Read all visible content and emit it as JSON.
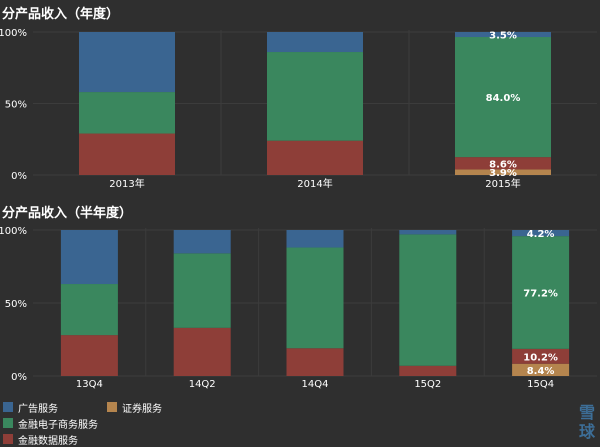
{
  "chart_data": [
    {
      "type": "bar",
      "stacked": "percent",
      "title": "分产品收入（年度）",
      "categories": [
        "2013年",
        "2014年",
        "2015年"
      ],
      "yticks": [
        "0%",
        "50%",
        "100%"
      ],
      "ylim": [
        0,
        100
      ],
      "series": [
        {
          "name": "证券服务",
          "color": "#b5854e",
          "values": [
            0.0,
            0.0,
            3.9
          ]
        },
        {
          "name": "金融数据服务",
          "color": "#8e3e38",
          "values": [
            29.0,
            24.0,
            8.6
          ]
        },
        {
          "name": "金融电子商务服务",
          "color": "#3a875e",
          "values": [
            29.0,
            62.0,
            84.0
          ]
        },
        {
          "name": "广告服务",
          "color": "#3a6591",
          "values": [
            42.0,
            14.0,
            3.5
          ]
        }
      ],
      "data_labels": [
        {
          "series": 0,
          "index": 2,
          "text": "3.9%"
        },
        {
          "series": 1,
          "index": 2,
          "text": "8.6%"
        },
        {
          "series": 2,
          "index": 2,
          "text": "84.0%"
        },
        {
          "series": 3,
          "index": 2,
          "text": "3.5%"
        }
      ]
    },
    {
      "type": "bar",
      "stacked": "percent",
      "title": "分产品收入（半年度）",
      "categories": [
        "13Q4",
        "14Q2",
        "14Q4",
        "15Q2",
        "15Q4"
      ],
      "yticks": [
        "0%",
        "50%",
        "100%"
      ],
      "ylim": [
        0,
        100
      ],
      "series": [
        {
          "name": "证券服务",
          "color": "#b5854e",
          "values": [
            0.0,
            0.0,
            0.0,
            0.0,
            8.4
          ]
        },
        {
          "name": "金融数据服务",
          "color": "#8e3e38",
          "values": [
            28.0,
            33.0,
            19.0,
            7.0,
            10.2
          ]
        },
        {
          "name": "金融电子商务服务",
          "color": "#3a875e",
          "values": [
            35.0,
            51.0,
            69.0,
            90.0,
            77.2
          ]
        },
        {
          "name": "广告服务",
          "color": "#3a6591",
          "values": [
            37.0,
            16.0,
            12.0,
            3.0,
            4.2
          ]
        }
      ],
      "data_labels": [
        {
          "series": 0,
          "index": 4,
          "text": "8.4%"
        },
        {
          "series": 1,
          "index": 4,
          "text": "10.2%"
        },
        {
          "series": 2,
          "index": 4,
          "text": "77.2%"
        },
        {
          "series": 3,
          "index": 4,
          "text": "4.2%"
        }
      ]
    }
  ],
  "legend": [
    {
      "name": "广告服务",
      "color": "#3a6591"
    },
    {
      "name": "证券服务",
      "color": "#b5854e"
    },
    {
      "name": "金融电子商务服务",
      "color": "#3a875e"
    },
    {
      "name": "",
      "color": ""
    },
    {
      "name": "金融数据服务",
      "color": "#8e3e38"
    }
  ],
  "watermark": {
    "text": "雪球",
    "color": "#3d6e97"
  }
}
